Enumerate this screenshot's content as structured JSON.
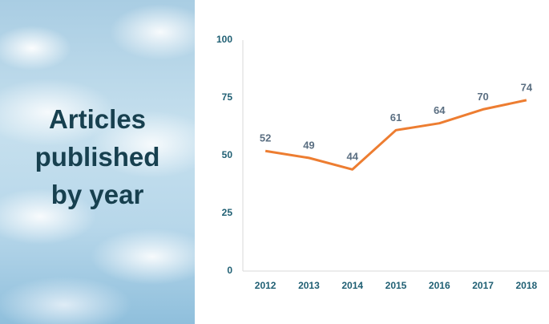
{
  "chart_data": {
    "type": "line",
    "title": "Articles published by year",
    "categories": [
      "2012",
      "2013",
      "2014",
      "2015",
      "2016",
      "2017",
      "2018"
    ],
    "values": [
      52,
      49,
      44,
      61,
      64,
      70,
      74
    ],
    "color": "#ed7d31",
    "ylim": [
      0,
      100
    ],
    "yticks": [
      0,
      25,
      50,
      75,
      100
    ],
    "grid": false,
    "data_labels": true
  }
}
